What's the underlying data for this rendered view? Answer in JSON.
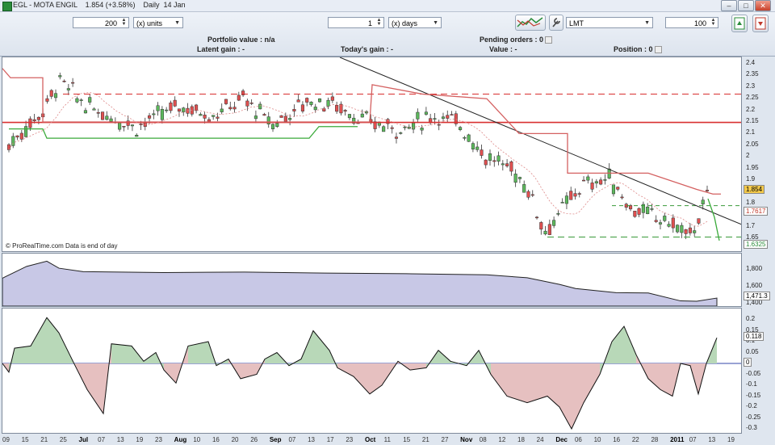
{
  "window": {
    "title": "EGL - MOTA ENGIL    1.854 (+3.58%)    Daily  14 Jan",
    "btn_min": "–",
    "btn_max": "□",
    "btn_close": "✕"
  },
  "toolbar": {
    "units_value": "200",
    "units_select": "(x) units",
    "days_value": "1",
    "days_select": "(x) days",
    "order_type": "LMT",
    "qty_value": "100"
  },
  "info": {
    "portfolio": "Portfolio value : n/a",
    "latent": "Latent gain : -",
    "today": "Today's gain : -",
    "pending": "Pending orders : 0",
    "value": "Value : -",
    "position": "Position : 0"
  },
  "chart_note": "© ProRealTime.com Data is end of day",
  "colors": {
    "up": "#5cb85c",
    "down": "#e05050",
    "resistance": "#d93030",
    "support": "#3a9a3a",
    "volume_fill": "#c8c8e6",
    "osc_pos": "#b8d8b8",
    "osc_neg": "#e6c0c0"
  },
  "price_axis": {
    "ticks": [
      "2.4",
      "2.35",
      "2.3",
      "2.25",
      "2.2",
      "2.15",
      "2.1",
      "2.05",
      "2",
      "1.95",
      "1.9",
      "1.85",
      "1.8",
      "1.75",
      "1.7",
      "1.65"
    ],
    "last": "1.854",
    "level1": "1.7617",
    "level2": "1.6325"
  },
  "volume_axis": {
    "ticks": [
      "1,800",
      "1,600",
      "1,400"
    ],
    "last": "1,471.3"
  },
  "osc_axis": {
    "ticks": [
      "0.2",
      "0.15",
      "0.1",
      "0.05",
      "0",
      "-0.05",
      "-0.1",
      "-0.15",
      "-0.2",
      "-0.25",
      "-0.3"
    ],
    "last": "0.118",
    "zero": "0"
  },
  "x_axis": [
    {
      "t": "09"
    },
    {
      "t": "15"
    },
    {
      "t": "21"
    },
    {
      "t": "25"
    },
    {
      "t": "Jul",
      "b": 1
    },
    {
      "t": "07"
    },
    {
      "t": "13"
    },
    {
      "t": "19"
    },
    {
      "t": "23"
    },
    {
      "t": "Aug",
      "b": 1
    },
    {
      "t": "10"
    },
    {
      "t": "16"
    },
    {
      "t": "20"
    },
    {
      "t": "26"
    },
    {
      "t": "Sep",
      "b": 1
    },
    {
      "t": "07"
    },
    {
      "t": "13"
    },
    {
      "t": "17"
    },
    {
      "t": "23"
    },
    {
      "t": "Oct",
      "b": 1
    },
    {
      "t": "11"
    },
    {
      "t": "15"
    },
    {
      "t": "21"
    },
    {
      "t": "27"
    },
    {
      "t": "Nov",
      "b": 1
    },
    {
      "t": "08"
    },
    {
      "t": "12"
    },
    {
      "t": "18"
    },
    {
      "t": "24"
    },
    {
      "t": "Dec",
      "b": 1
    },
    {
      "t": "06"
    },
    {
      "t": "10"
    },
    {
      "t": "16"
    },
    {
      "t": "22"
    },
    {
      "t": "28"
    },
    {
      "t": "2011",
      "b": 1
    },
    {
      "t": "07"
    },
    {
      "t": "13"
    },
    {
      "t": "19"
    }
  ]
}
